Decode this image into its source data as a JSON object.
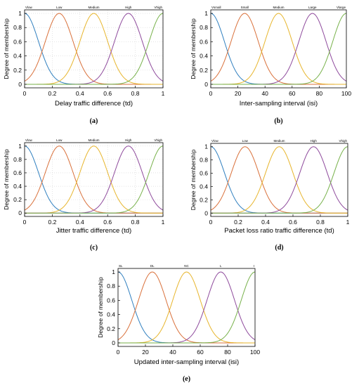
{
  "chart_data": [
    {
      "type": "line",
      "caption": "(a)",
      "xlabel": "Delay traffic difference (td)",
      "ylabel": "Degree of membership",
      "xlim": [
        0,
        1
      ],
      "ylim": [
        -0.05,
        1.05
      ],
      "xticks": [
        "0",
        "0.2",
        "0.4",
        "0.6",
        "0.8",
        "1"
      ],
      "yticks": [
        "0",
        "0.2",
        "0.4",
        "0.6",
        "0.8",
        "1"
      ],
      "grid": true,
      "series": [
        {
          "name": "Vlow",
          "center": 0,
          "sigma": 0.1,
          "color": "#2f7fbf"
        },
        {
          "name": "Low",
          "center": 0.25,
          "sigma": 0.1,
          "color": "#d9703a"
        },
        {
          "name": "Medium",
          "center": 0.5,
          "sigma": 0.1,
          "color": "#e7b52c"
        },
        {
          "name": "High",
          "center": 0.75,
          "sigma": 0.1,
          "color": "#8e4a9c"
        },
        {
          "name": "Vhigh",
          "center": 1,
          "sigma": 0.1,
          "color": "#77b14a"
        }
      ]
    },
    {
      "type": "line",
      "caption": "(b)",
      "xlabel": "Inter-sampling interval (isi)",
      "ylabel": "Degree of membership",
      "xlim": [
        0,
        100
      ],
      "ylim": [
        -0.05,
        1.05
      ],
      "xticks": [
        "0",
        "20",
        "40",
        "60",
        "80",
        "100"
      ],
      "yticks": [
        "0",
        "0.2",
        "0.4",
        "0.6",
        "0.8",
        "1"
      ],
      "grid": false,
      "series": [
        {
          "name": "Vsmall",
          "center": 0,
          "sigma": 10,
          "color": "#2f7fbf"
        },
        {
          "name": "Small",
          "center": 25,
          "sigma": 10,
          "color": "#d9703a"
        },
        {
          "name": "Medium",
          "center": 50,
          "sigma": 10,
          "color": "#e7b52c"
        },
        {
          "name": "Large",
          "center": 75,
          "sigma": 10,
          "color": "#8e4a9c"
        },
        {
          "name": "Vlarge",
          "center": 100,
          "sigma": 10,
          "color": "#77b14a"
        }
      ]
    },
    {
      "type": "line",
      "caption": "(c)",
      "xlabel": "Jitter traffic difference (td)",
      "ylabel": "Degree of membership",
      "xlim": [
        0,
        1
      ],
      "ylim": [
        -0.05,
        1.05
      ],
      "xticks": [
        "0",
        "0.2",
        "0.4",
        "0.6",
        "0.8",
        "1"
      ],
      "yticks": [
        "0",
        "0.2",
        "0.4",
        "0.6",
        "0.8",
        "1"
      ],
      "grid": true,
      "series": [
        {
          "name": "Vlow",
          "center": 0,
          "sigma": 0.1,
          "color": "#2f7fbf"
        },
        {
          "name": "Low",
          "center": 0.25,
          "sigma": 0.1,
          "color": "#d9703a"
        },
        {
          "name": "Medium",
          "center": 0.5,
          "sigma": 0.1,
          "color": "#e7b52c"
        },
        {
          "name": "High",
          "center": 0.75,
          "sigma": 0.1,
          "color": "#8e4a9c"
        },
        {
          "name": "Vhigh",
          "center": 1,
          "sigma": 0.1,
          "color": "#77b14a"
        }
      ]
    },
    {
      "type": "line",
      "caption": "(d)",
      "xlabel": "Packet loss ratio traffic difference (td)",
      "ylabel": "Degree of membership",
      "xlim": [
        0,
        1
      ],
      "ylim": [
        -0.05,
        1.05
      ],
      "xticks": [
        "0",
        "0.2",
        "0.4",
        "0.6",
        "0.8",
        "1"
      ],
      "yticks": [
        "0",
        "0.2",
        "0.4",
        "0.6",
        "0.8",
        "1"
      ],
      "grid": false,
      "series": [
        {
          "name": "Vlow",
          "center": 0,
          "sigma": 0.1,
          "color": "#2f7fbf"
        },
        {
          "name": "Low",
          "center": 0.25,
          "sigma": 0.1,
          "color": "#d9703a"
        },
        {
          "name": "Medium",
          "center": 0.5,
          "sigma": 0.1,
          "color": "#e7b52c"
        },
        {
          "name": "High",
          "center": 0.75,
          "sigma": 0.1,
          "color": "#8e4a9c"
        },
        {
          "name": "Vhigh",
          "center": 1,
          "sigma": 0.1,
          "color": "#77b14a"
        }
      ]
    },
    {
      "type": "line",
      "caption": "(e)",
      "xlabel": "Updated inter-sampling interval (isi)",
      "ylabel": "Degree of membership",
      "xlim": [
        0,
        100
      ],
      "ylim": [
        -0.05,
        1.05
      ],
      "xticks": [
        "0",
        "20",
        "40",
        "60",
        "80",
        "100"
      ],
      "yticks": [
        "0",
        "0.2",
        "0.4",
        "0.6",
        "0.8",
        "1"
      ],
      "grid": false,
      "series": [
        {
          "name": "SL",
          "center": 0,
          "sigma": 10,
          "color": "#2f7fbf"
        },
        {
          "name": "DL",
          "center": 25,
          "sigma": 10,
          "color": "#d9703a"
        },
        {
          "name": "NC",
          "center": 50,
          "sigma": 10,
          "color": "#e7b52c"
        },
        {
          "name": "L",
          "center": 75,
          "sigma": 10,
          "color": "#8e4a9c"
        },
        {
          "name": "I",
          "center": 100,
          "sigma": 10,
          "color": "#77b14a"
        }
      ]
    }
  ]
}
